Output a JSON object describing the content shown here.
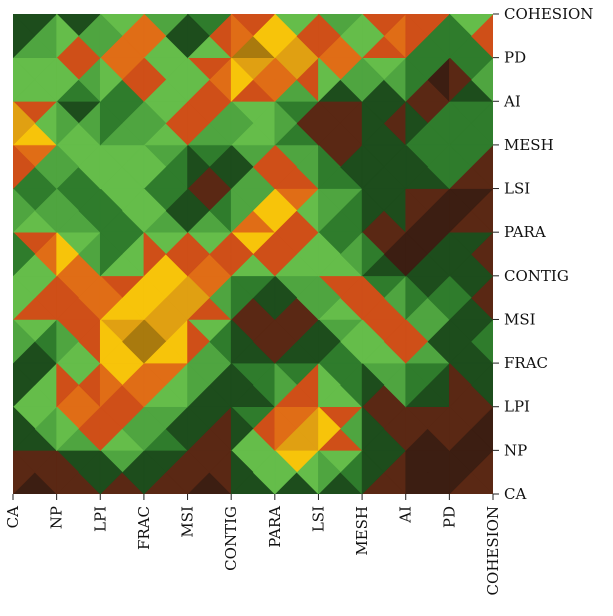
{
  "chart_data": {
    "type": "heatmap",
    "title": "",
    "xlabel": "",
    "ylabel": "",
    "x_categories": [
      "CA",
      "NP",
      "LPI",
      "FRAC",
      "MSI",
      "CONTIG",
      "PARA",
      "LSI",
      "MESH",
      "AI",
      "PD",
      "COHESION"
    ],
    "y_categories": [
      "CA",
      "NP",
      "LPI",
      "FRAC",
      "MSI",
      "CONTIG",
      "PARA",
      "LSI",
      "MESH",
      "AI",
      "PD",
      "COHESION"
    ],
    "y_order": "bottom-to-top",
    "color_scale": [
      "#3c1e12",
      "#5a2814",
      "#1d4d1c",
      "#2f7c2c",
      "#4fa540",
      "#65bd4a",
      "#cf4f18",
      "#e06d16",
      "#f7c40a",
      "#e0a012",
      "#a97a0e",
      "#7a5a18"
    ],
    "values": [
      [
        0.04,
        0.1,
        0.05,
        0.08,
        0.08,
        0.06,
        0.15,
        0.1,
        0.1,
        0.08,
        0.06,
        0.3
      ],
      [
        0.15,
        0.1,
        0.45,
        0.35,
        0.12,
        0.15,
        0.88,
        0.72,
        0.4,
        0.05,
        0.0,
        0.08
      ],
      [
        0.2,
        0.75,
        0.66,
        0.42,
        0.3,
        0.06,
        0.35,
        0.92,
        0.09,
        0.12,
        0.18,
        0.07
      ],
      [
        0.08,
        0.24,
        0.54,
        0.9,
        0.55,
        0.23,
        0.29,
        0.18,
        0.33,
        0.6,
        0.1,
        0.4
      ],
      [
        0.7,
        0.4,
        0.73,
        0.86,
        0.73,
        0.19,
        0.01,
        0.16,
        0.63,
        0.55,
        0.26,
        0.2
      ],
      [
        0.18,
        0.7,
        0.54,
        0.5,
        0.96,
        0.45,
        0.3,
        0.6,
        0.48,
        0.03,
        0.36,
        0.05
      ],
      [
        0.27,
        0.8,
        0.01,
        0.58,
        0.17,
        0.64,
        0.82,
        0.3,
        0.28,
        0.01,
        0.07,
        0.26
      ],
      [
        0.44,
        0.02,
        0.48,
        0.48,
        0.14,
        0.02,
        0.65,
        0.56,
        0.18,
        0.33,
        0.02,
        0.1
      ],
      [
        0.75,
        0.66,
        0.4,
        0.43,
        0.38,
        0.3,
        0.55,
        0.02,
        0.2,
        0.14,
        0.58,
        0.1
      ],
      [
        0.92,
        0.08,
        0.26,
        0.26,
        0.72,
        0.44,
        0.4,
        0.14,
        0.16,
        0.18,
        0.02,
        0.47
      ],
      [
        0.05,
        0.78,
        0.55,
        0.82,
        0.08,
        0.93,
        0.9,
        0.88,
        0.5,
        0.57,
        0.01,
        0.52
      ],
      [
        0.22,
        0.1,
        0.16,
        0.58,
        0.2,
        0.3,
        0.57,
        0.18,
        0.4,
        0.69,
        0.4,
        0.6
      ]
    ]
  }
}
